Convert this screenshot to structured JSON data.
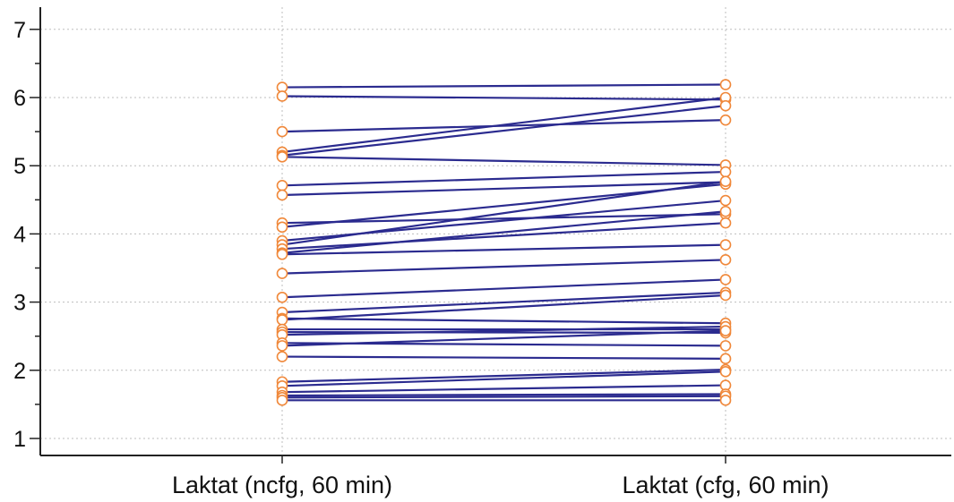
{
  "colors": {
    "line": "#2b2b8f",
    "marker": "#f0883a",
    "grid": "#bdbdbd",
    "axis": "#222222"
  },
  "chart_data": {
    "type": "line",
    "subtype": "paired-dot-plot",
    "title": "",
    "xlabel": "",
    "ylabel": "",
    "categories": [
      "Laktat (ncfg, 60 min)",
      "Laktat (cfg, 60 min)"
    ],
    "ylim": [
      0.8,
      7.3
    ],
    "yticks": [
      1,
      2,
      3,
      4,
      5,
      6,
      7
    ],
    "grid": true,
    "legend": "none",
    "pairs": [
      [
        6.15,
        6.19
      ],
      [
        6.02,
        5.97
      ],
      [
        5.5,
        5.67
      ],
      [
        5.2,
        6.0
      ],
      [
        5.15,
        5.88
      ],
      [
        5.13,
        5.01
      ],
      [
        4.71,
        4.91
      ],
      [
        4.57,
        4.76
      ],
      [
        4.16,
        4.29
      ],
      [
        4.1,
        4.73
      ],
      [
        3.9,
        4.49
      ],
      [
        3.84,
        4.77
      ],
      [
        3.78,
        4.16
      ],
      [
        3.72,
        4.33
      ],
      [
        3.7,
        3.84
      ],
      [
        3.42,
        3.62
      ],
      [
        3.07,
        3.33
      ],
      [
        2.85,
        3.14
      ],
      [
        2.76,
        2.69
      ],
      [
        2.74,
        3.1
      ],
      [
        2.6,
        2.6
      ],
      [
        2.56,
        2.55
      ],
      [
        2.52,
        2.64
      ],
      [
        2.4,
        2.36
      ],
      [
        2.36,
        2.58
      ],
      [
        2.2,
        2.17
      ],
      [
        1.83,
        2.01
      ],
      [
        1.77,
        1.98
      ],
      [
        1.68,
        1.78
      ],
      [
        1.63,
        1.65
      ],
      [
        1.6,
        1.62
      ],
      [
        1.56,
        1.56
      ]
    ]
  }
}
